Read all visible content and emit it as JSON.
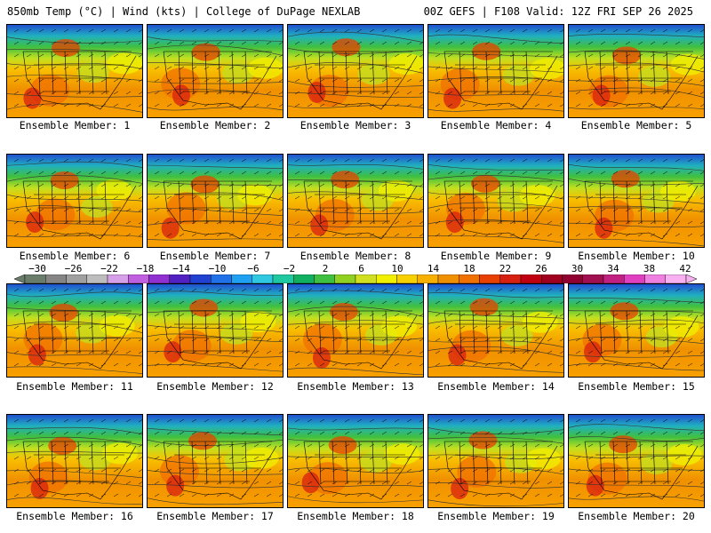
{
  "header": {
    "title_left": "850mb Temp (°C) | Wind (kts) | College of DuPage NEXLAB",
    "title_right": "00Z GEFS | F108 Valid: 12Z FRI SEP 26 2025"
  },
  "members": [
    "Ensemble Member: 1",
    "Ensemble Member: 2",
    "Ensemble Member: 3",
    "Ensemble Member: 4",
    "Ensemble Member: 5",
    "Ensemble Member: 6",
    "Ensemble Member: 7",
    "Ensemble Member: 8",
    "Ensemble Member: 9",
    "Ensemble Member: 10",
    "Ensemble Member: 11",
    "Ensemble Member: 12",
    "Ensemble Member: 13",
    "Ensemble Member: 14",
    "Ensemble Member: 15",
    "Ensemble Member: 16",
    "Ensemble Member: 17",
    "Ensemble Member: 18",
    "Ensemble Member: 19",
    "Ensemble Member: 20"
  ],
  "colorbar": {
    "ticks": [
      "−30",
      "−26",
      "−22",
      "−18",
      "−14",
      "−10",
      "−6",
      "−2",
      "2",
      "6",
      "10",
      "14",
      "18",
      "22",
      "26",
      "30",
      "34",
      "38",
      "42"
    ],
    "colors": [
      "#6a7d6a",
      "#858585",
      "#a0a0a0",
      "#bdbdbd",
      "#d6a0e8",
      "#c060e0",
      "#9030d0",
      "#5020c0",
      "#2040d0",
      "#2070e8",
      "#20a0f0",
      "#30c8e0",
      "#20c8a0",
      "#10b060",
      "#40c040",
      "#90d020",
      "#d0e020",
      "#f0f000",
      "#f8d000",
      "#f8b000",
      "#f09000",
      "#f07000",
      "#e84000",
      "#d82010",
      "#c00010",
      "#a00020",
      "#900030",
      "#a01050",
      "#c02080",
      "#e040c0",
      "#f080e0",
      "#f8b0f0"
    ]
  }
}
